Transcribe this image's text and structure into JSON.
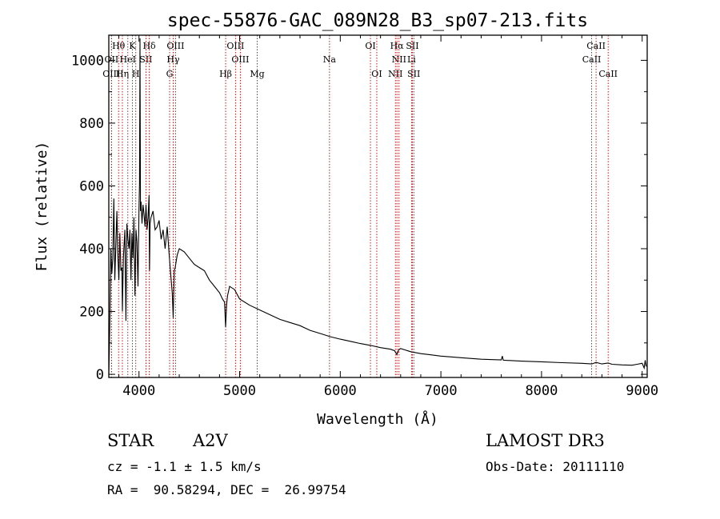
{
  "chart_data": {
    "type": "line",
    "title": "spec-55876-GAC_089N28_B3_sp07-213.fits",
    "xlabel": "Wavelength (Å)",
    "ylabel": "Flux (relative)",
    "xlim": [
      3700,
      9050
    ],
    "ylim": [
      -10,
      1080
    ],
    "grid": false,
    "x_ticks": [
      {
        "value": 4000,
        "label": "4000"
      },
      {
        "value": 5000,
        "label": "5000"
      },
      {
        "value": 6000,
        "label": "6000"
      },
      {
        "value": 7000,
        "label": "7000"
      },
      {
        "value": 8000,
        "label": "8000"
      },
      {
        "value": 9000,
        "label": "9000"
      }
    ],
    "y_ticks": [
      {
        "value": 0,
        "label": "0"
      },
      {
        "value": 200,
        "label": "200"
      },
      {
        "value": 400,
        "label": "400"
      },
      {
        "value": 600,
        "label": "600"
      },
      {
        "value": 800,
        "label": "800"
      },
      {
        "value": 1000,
        "label": "1000"
      }
    ],
    "series": [
      {
        "name": "spectrum",
        "x": [
          3700,
          3705,
          3712,
          3720,
          3730,
          3740,
          3750,
          3760,
          3770,
          3780,
          3790,
          3800,
          3810,
          3820,
          3830,
          3835,
          3845,
          3860,
          3870,
          3880,
          3890,
          3900,
          3910,
          3920,
          3930,
          3940,
          3950,
          3960,
          3970,
          3980,
          3990,
          4000,
          4005,
          4010,
          4015,
          4020,
          4030,
          4040,
          4050,
          4060,
          4070,
          4080,
          4090,
          4100,
          4105,
          4110,
          4120,
          4140,
          4160,
          4180,
          4200,
          4220,
          4240,
          4260,
          4280,
          4300,
          4320,
          4330,
          4340,
          4350,
          4360,
          4380,
          4400,
          4450,
          4500,
          4550,
          4600,
          4650,
          4700,
          4750,
          4800,
          4830,
          4850,
          4861,
          4870,
          4880,
          4900,
          4950,
          5000,
          5100,
          5200,
          5300,
          5400,
          5500,
          5600,
          5700,
          5800,
          5900,
          6000,
          6100,
          6200,
          6300,
          6400,
          6500,
          6540,
          6563,
          6580,
          6600,
          6700,
          6800,
          6900,
          7000,
          7200,
          7400,
          7600,
          7610,
          7620,
          7800,
          8000,
          8200,
          8400,
          8500,
          8542,
          8600,
          8662,
          8700,
          8800,
          8900,
          8950,
          9000,
          9020,
          9030,
          9040
        ],
        "y": [
          0,
          70,
          200,
          400,
          320,
          370,
          560,
          300,
          410,
          520,
          380,
          300,
          450,
          330,
          340,
          200,
          370,
          460,
          170,
          480,
          430,
          400,
          460,
          300,
          450,
          370,
          500,
          250,
          460,
          420,
          280,
          520,
          610,
          1070,
          520,
          550,
          480,
          540,
          510,
          470,
          540,
          460,
          500,
          570,
          330,
          480,
          500,
          520,
          460,
          470,
          490,
          430,
          460,
          400,
          470,
          380,
          300,
          260,
          180,
          330,
          340,
          380,
          400,
          390,
          370,
          350,
          340,
          330,
          300,
          280,
          260,
          240,
          230,
          150,
          220,
          250,
          280,
          270,
          240,
          220,
          205,
          190,
          175,
          165,
          155,
          140,
          130,
          120,
          112,
          105,
          98,
          92,
          85,
          80,
          75,
          62,
          78,
          82,
          72,
          66,
          62,
          58,
          53,
          48,
          46,
          58,
          45,
          42,
          40,
          37,
          35,
          33,
          38,
          33,
          36,
          32,
          30,
          29,
          32,
          35,
          20,
          45,
          25
        ]
      }
    ],
    "spectral_lines": [
      {
        "label": "Hθ",
        "wavelength": 3797,
        "row": 0
      },
      {
        "label": "K",
        "wavelength": 3934,
        "row": 0
      },
      {
        "label": "Hδ",
        "wavelength": 4102,
        "row": 0
      },
      {
        "label": "OIII",
        "wavelength": 4363,
        "row": 0
      },
      {
        "label": "OIII",
        "wavelength": 4959,
        "row": 0
      },
      {
        "label": "OI",
        "wavelength": 6300,
        "row": 0
      },
      {
        "label": "Hα",
        "wavelength": 6563,
        "row": 0
      },
      {
        "label": "SII",
        "wavelength": 6717,
        "row": 0
      },
      {
        "label": "CaII",
        "wavelength": 8542,
        "row": 0
      },
      {
        "label": "OII",
        "wavelength": 3727,
        "row": 1
      },
      {
        "label": "HeI",
        "wavelength": 3889,
        "row": 1
      },
      {
        "label": "SII",
        "wavelength": 4069,
        "row": 1
      },
      {
        "label": "Hγ",
        "wavelength": 4340,
        "row": 1
      },
      {
        "label": "OIII",
        "wavelength": 5007,
        "row": 1
      },
      {
        "label": "Na",
        "wavelength": 5893,
        "row": 1
      },
      {
        "label": "NII",
        "wavelength": 6584,
        "row": 1
      },
      {
        "label": "Li",
        "wavelength": 6708,
        "row": 1
      },
      {
        "label": "CaII",
        "wavelength": 8498,
        "row": 1
      },
      {
        "label": "OIII",
        "wavelength": 3726,
        "row": 2
      },
      {
        "label": "Hη",
        "wavelength": 3835,
        "row": 2
      },
      {
        "label": "H",
        "wavelength": 3968,
        "row": 2
      },
      {
        "label": "G",
        "wavelength": 4304,
        "row": 2
      },
      {
        "label": "Hβ",
        "wavelength": 4861,
        "row": 2
      },
      {
        "label": "Mg",
        "wavelength": 5175,
        "row": 2
      },
      {
        "label": "OI",
        "wavelength": 6363,
        "row": 2
      },
      {
        "label": "NII",
        "wavelength": 6548,
        "row": 2
      },
      {
        "label": "SII",
        "wavelength": 6731,
        "row": 2
      },
      {
        "label": "CaII",
        "wavelength": 8662,
        "row": 2
      }
    ],
    "annotations": {
      "object_class": "STAR",
      "subclass": "A2V",
      "survey": "LAMOST DR3",
      "redshift": "cz = -1.1 ± 1.5 km/s",
      "obs_date": "Obs-Date: 20111110",
      "coords": "RA =  90.58294, DEC =  26.99754"
    }
  }
}
